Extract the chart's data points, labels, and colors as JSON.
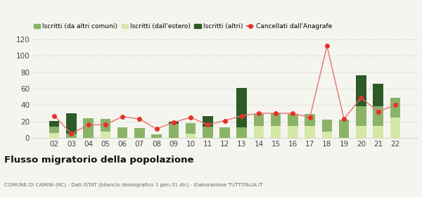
{
  "years": [
    "02",
    "03",
    "04",
    "05",
    "06",
    "07",
    "08",
    "09",
    "10",
    "11",
    "12",
    "13",
    "14",
    "15",
    "16",
    "17",
    "18",
    "19",
    "20",
    "21",
    "22"
  ],
  "iscritti_altri_comuni": [
    8,
    5,
    24,
    15,
    13,
    12,
    4,
    17,
    13,
    14,
    13,
    13,
    14,
    15,
    14,
    14,
    14,
    22,
    24,
    24,
    24
  ],
  "iscritti_estero": [
    6,
    0,
    0,
    8,
    0,
    0,
    0,
    0,
    5,
    0,
    0,
    0,
    15,
    15,
    15,
    15,
    8,
    0,
    15,
    15,
    25
  ],
  "iscritti_altri": [
    7,
    25,
    0,
    0,
    0,
    0,
    0,
    3,
    0,
    13,
    0,
    48,
    0,
    0,
    0,
    0,
    0,
    0,
    37,
    27,
    0
  ],
  "cancellati": [
    27,
    5,
    16,
    16,
    26,
    23,
    11,
    19,
    25,
    16,
    21,
    27,
    30,
    30,
    30,
    25,
    112,
    23,
    49,
    32,
    40
  ],
  "color_altri_comuni": "#8ab368",
  "color_estero": "#d5e8a8",
  "color_altri": "#2d5a27",
  "color_cancellati": "#e8302a",
  "color_line": "#e87070",
  "background": "#f5f5ef",
  "grid_color": "#d8d8d0",
  "title": "Flusso migratorio della popolazione",
  "subtitle": "COMUNE DI CAMINI (RC) - Dati ISTAT (bilancio demografico 1 gen-31 dic) - Elaborazione TUTTITALIA.IT",
  "legend_labels": [
    "Iscritti (da altri comuni)",
    "Iscritti (dall'estero)",
    "Iscritti (altri)",
    "Cancellati dall'Anagrafe"
  ],
  "ylim": [
    0,
    120
  ],
  "yticks": [
    0,
    20,
    40,
    60,
    80,
    100,
    120
  ]
}
